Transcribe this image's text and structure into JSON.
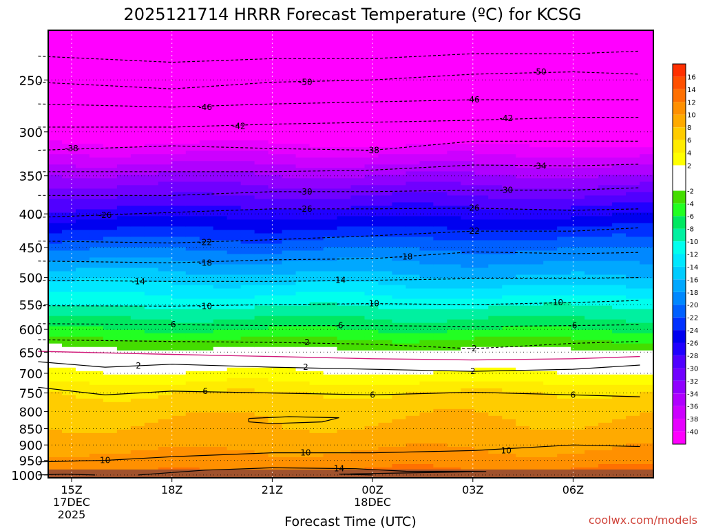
{
  "title": "2025121714 HRRR Forecast Temperature (ºC) for KCSG",
  "xlabel": "Forecast Time (UTC)",
  "credit": "coolwx.com/models",
  "colors": {
    "line": "#000000",
    "freezing_line": "#d11a7a",
    "ground": "#a0522d",
    "credit": "#d0443a"
  },
  "chart_data": {
    "type": "heatmap",
    "title": "2025121714 HRRR Forecast Temperature (ºC) for KCSG",
    "xlabel": "Forecast Time (UTC)",
    "ylabel": "",
    "x_hours": [
      14,
      15,
      16,
      17,
      18,
      19,
      20,
      21,
      22,
      23,
      24,
      25,
      26,
      27,
      28,
      29,
      30,
      31,
      32
    ],
    "y_pressure": [
      1000,
      950,
      900,
      850,
      800,
      750,
      700,
      650,
      600,
      550,
      500,
      450,
      400,
      350,
      300,
      250
    ],
    "ylim": [
      1010,
      210
    ],
    "xticks": [
      {
        "hour": 15,
        "label": "15Z",
        "sub1": "17DEC",
        "sub2": "2025"
      },
      {
        "hour": 18,
        "label": "18Z",
        "sub1": "",
        "sub2": ""
      },
      {
        "hour": 21,
        "label": "21Z",
        "sub1": "",
        "sub2": ""
      },
      {
        "hour": 24,
        "label": "00Z",
        "sub1": "18DEC",
        "sub2": ""
      },
      {
        "hour": 27,
        "label": "03Z",
        "sub1": "",
        "sub2": ""
      },
      {
        "hour": 30,
        "label": "06Z",
        "sub1": "",
        "sub2": ""
      }
    ],
    "yticks": [
      1000,
      950,
      900,
      850,
      800,
      750,
      700,
      650,
      600,
      550,
      500,
      450,
      400,
      350,
      300,
      250
    ],
    "grid": true,
    "ground_pressure": 1000,
    "colorbar": {
      "placement": "right",
      "ticks": [
        16,
        14,
        12,
        10,
        8,
        6,
        4,
        2,
        -2,
        -4,
        -6,
        -8,
        -10,
        -12,
        -14,
        -16,
        -18,
        -20,
        -22,
        -24,
        -26,
        -28,
        -30,
        -32,
        -34,
        -36,
        -38,
        -40
      ],
      "bins": [
        {
          "min": -42,
          "max": -40,
          "color": "#ff00ff"
        },
        {
          "min": -40,
          "max": -38,
          "color": "#e600ff"
        },
        {
          "min": -38,
          "max": -36,
          "color": "#cc00ff"
        },
        {
          "min": -36,
          "max": -34,
          "color": "#b000ff"
        },
        {
          "min": -34,
          "max": -32,
          "color": "#9000ff"
        },
        {
          "min": -32,
          "max": -30,
          "color": "#7000ff"
        },
        {
          "min": -30,
          "max": -28,
          "color": "#5000ff"
        },
        {
          "min": -28,
          "max": -26,
          "color": "#2000ff"
        },
        {
          "min": -26,
          "max": -24,
          "color": "#0000f0"
        },
        {
          "min": -24,
          "max": -22,
          "color": "#0030ff"
        },
        {
          "min": -22,
          "max": -20,
          "color": "#0060ff"
        },
        {
          "min": -20,
          "max": -18,
          "color": "#0088ff"
        },
        {
          "min": -18,
          "max": -16,
          "color": "#00a8ff"
        },
        {
          "min": -16,
          "max": -14,
          "color": "#00ccff"
        },
        {
          "min": -14,
          "max": -12,
          "color": "#00e8ff"
        },
        {
          "min": -12,
          "max": -10,
          "color": "#00ffee"
        },
        {
          "min": -10,
          "max": -8,
          "color": "#00f0a0"
        },
        {
          "min": -8,
          "max": -6,
          "color": "#00e860"
        },
        {
          "min": -6,
          "max": -4,
          "color": "#22ff22"
        },
        {
          "min": -4,
          "max": -2,
          "color": "#44dd00"
        },
        {
          "min": -2,
          "max": 2,
          "color": "#ffffff"
        },
        {
          "min": 2,
          "max": 4,
          "color": "#ffff00"
        },
        {
          "min": 4,
          "max": 6,
          "color": "#ffec00"
        },
        {
          "min": 6,
          "max": 8,
          "color": "#ffcc00"
        },
        {
          "min": 8,
          "max": 10,
          "color": "#ffaa00"
        },
        {
          "min": 10,
          "max": 12,
          "color": "#ff9000"
        },
        {
          "min": 12,
          "max": 14,
          "color": "#ff7000"
        },
        {
          "min": 14,
          "max": 16,
          "color": "#ff5000"
        },
        {
          "min": 16,
          "max": 18,
          "color": "#ff3000"
        }
      ]
    },
    "profile": {
      "pressures": [
        1000,
        950,
        900,
        850,
        800,
        750,
        700,
        650,
        600,
        550,
        500,
        450,
        400,
        350,
        300,
        250,
        220
      ],
      "temps_early": [
        11.5,
        11,
        9.2,
        8.2,
        7.4,
        6,
        2.4,
        -1.1,
        -6,
        -10.5,
        -14.6,
        -20.5,
        -27,
        -33.6,
        -42,
        -49,
        -55
      ],
      "temps_late": [
        13.2,
        10.9,
        9.6,
        8.6,
        7.6,
        6.1,
        2.0,
        -1.3,
        -6.2,
        -10.4,
        -16.1,
        -20.3,
        -26.5,
        -34,
        -43,
        -49.5,
        -55
      ]
    },
    "contours": [
      {
        "value": 10,
        "style": "solid",
        "points": [
          [
            14,
            955
          ],
          [
            16,
            950
          ],
          [
            18,
            938
          ],
          [
            21,
            925
          ],
          [
            24,
            925
          ],
          [
            27,
            918
          ],
          [
            30,
            900
          ],
          [
            32,
            905
          ]
        ],
        "labels": [
          [
            16,
            950
          ],
          [
            22,
            925
          ],
          [
            28,
            918
          ]
        ]
      },
      {
        "value": 14,
        "style": "solid",
        "points": [
          [
            17,
            1000
          ],
          [
            19,
            983
          ],
          [
            21,
            975
          ],
          [
            23.5,
            978
          ],
          [
            25,
            987
          ],
          [
            27.4,
            988
          ],
          [
            25.5,
            992
          ],
          [
            23,
            997
          ],
          [
            24,
            1000
          ]
        ],
        "labels": [
          [
            23,
            978
          ]
        ]
      },
      {
        "value": 6,
        "style": "solid",
        "points": [
          [
            14,
            735
          ],
          [
            16,
            755
          ],
          [
            18,
            745
          ],
          [
            21,
            750
          ],
          [
            24,
            755
          ],
          [
            27,
            748
          ],
          [
            30,
            755
          ],
          [
            32,
            760
          ]
        ],
        "labels": [
          [
            19,
            745
          ],
          [
            24,
            755
          ],
          [
            30,
            755
          ]
        ]
      },
      {
        "value": 2,
        "style": "solid",
        "points": [
          [
            14,
            672
          ],
          [
            16,
            685
          ],
          [
            18,
            678
          ],
          [
            21,
            685
          ],
          [
            24,
            690
          ],
          [
            27,
            695
          ],
          [
            30,
            690
          ],
          [
            32,
            680
          ]
        ],
        "labels": [
          [
            17,
            682
          ],
          [
            22,
            685
          ],
          [
            27,
            695
          ]
        ]
      },
      {
        "value": 0,
        "style": "freezing",
        "points": [
          [
            14,
            648
          ],
          [
            18,
            655
          ],
          [
            21,
            660
          ],
          [
            24,
            665
          ],
          [
            27,
            668
          ],
          [
            30,
            665
          ],
          [
            32,
            660
          ]
        ],
        "labels": []
      },
      {
        "value": -2,
        "style": "dashed",
        "points": [
          [
            14,
            622
          ],
          [
            18,
            626
          ],
          [
            21,
            628
          ],
          [
            24,
            632
          ],
          [
            27,
            642
          ],
          [
            30,
            630
          ],
          [
            32,
            626
          ]
        ],
        "labels": [
          [
            22,
            628
          ],
          [
            27,
            642
          ]
        ]
      },
      {
        "value": -6,
        "style": "dashed",
        "points": [
          [
            14,
            588
          ],
          [
            18,
            590
          ],
          [
            21,
            592
          ],
          [
            24,
            592
          ],
          [
            27,
            594
          ],
          [
            30,
            592
          ],
          [
            32,
            590
          ]
        ],
        "labels": [
          [
            18,
            590
          ],
          [
            23,
            592
          ],
          [
            30,
            592
          ]
        ]
      },
      {
        "value": -10,
        "style": "dashed",
        "points": [
          [
            14,
            552
          ],
          [
            18,
            553
          ],
          [
            21,
            550
          ],
          [
            24,
            548
          ],
          [
            27,
            550
          ],
          [
            30,
            546
          ],
          [
            32,
            542
          ]
        ],
        "labels": [
          [
            19,
            553
          ],
          [
            24,
            548
          ],
          [
            29.5,
            546
          ]
        ]
      },
      {
        "value": -14,
        "style": "dashed",
        "points": [
          [
            14,
            505
          ],
          [
            18,
            507
          ],
          [
            21,
            507
          ],
          [
            24,
            505
          ],
          [
            27,
            502
          ],
          [
            30,
            502
          ],
          [
            32,
            500
          ]
        ],
        "labels": [
          [
            17,
            507
          ],
          [
            23,
            505
          ]
        ]
      },
      {
        "value": -18,
        "style": "dashed",
        "points": [
          [
            14,
            472
          ],
          [
            18,
            475
          ],
          [
            21,
            470
          ],
          [
            24,
            468
          ],
          [
            27,
            457
          ],
          [
            30,
            460
          ],
          [
            32,
            458
          ]
        ],
        "labels": [
          [
            19,
            475
          ],
          [
            25,
            465
          ]
        ]
      },
      {
        "value": -22,
        "style": "dashed",
        "points": [
          [
            14,
            440
          ],
          [
            18,
            443
          ],
          [
            21,
            438
          ],
          [
            24,
            432
          ],
          [
            27,
            425
          ],
          [
            30,
            425
          ],
          [
            32,
            420
          ]
        ],
        "labels": [
          [
            19,
            442
          ],
          [
            27,
            425
          ]
        ]
      },
      {
        "value": -26,
        "style": "dashed",
        "points": [
          [
            14,
            405
          ],
          [
            18,
            398
          ],
          [
            21,
            393
          ],
          [
            24,
            393
          ],
          [
            27,
            392
          ],
          [
            30,
            395
          ],
          [
            32,
            393
          ]
        ],
        "labels": [
          [
            16,
            402
          ],
          [
            22,
            393
          ],
          [
            27,
            392
          ]
        ]
      },
      {
        "value": -30,
        "style": "dashed",
        "points": [
          [
            14,
            375
          ],
          [
            18,
            375
          ],
          [
            21,
            370
          ],
          [
            24,
            370
          ],
          [
            27,
            368
          ],
          [
            30,
            368
          ],
          [
            32,
            365
          ]
        ],
        "labels": [
          [
            22,
            370
          ],
          [
            28,
            368
          ]
        ]
      },
      {
        "value": -34,
        "style": "dashed",
        "points": [
          [
            14,
            345
          ],
          [
            18,
            345
          ],
          [
            21,
            345
          ],
          [
            24,
            343
          ],
          [
            27,
            337
          ],
          [
            30,
            338
          ],
          [
            32,
            336
          ]
        ],
        "labels": [
          [
            29,
            338
          ]
        ]
      },
      {
        "value": -38,
        "style": "dashed",
        "points": [
          [
            14,
            320
          ],
          [
            18,
            315
          ],
          [
            21,
            318
          ],
          [
            24,
            320
          ],
          [
            27,
            310
          ],
          [
            30,
            310
          ],
          [
            32,
            310
          ]
        ],
        "labels": [
          [
            15,
            318
          ],
          [
            24,
            320
          ]
        ]
      },
      {
        "value": -42,
        "style": "dashed",
        "points": [
          [
            14,
            295
          ],
          [
            18,
            295
          ],
          [
            21,
            292
          ],
          [
            24,
            290
          ],
          [
            27,
            288
          ],
          [
            30,
            285
          ],
          [
            32,
            285
          ]
        ],
        "labels": [
          [
            20,
            294
          ],
          [
            28,
            286
          ]
        ]
      },
      {
        "value": -46,
        "style": "dashed",
        "points": [
          [
            14,
            272
          ],
          [
            18,
            275
          ],
          [
            21,
            272
          ],
          [
            24,
            270
          ],
          [
            27,
            268
          ],
          [
            30,
            268
          ],
          [
            32,
            268
          ]
        ],
        "labels": [
          [
            19,
            275
          ],
          [
            27,
            268
          ]
        ]
      },
      {
        "value": -50,
        "style": "dashed",
        "points": [
          [
            14,
            252
          ],
          [
            18,
            258
          ],
          [
            21,
            252
          ],
          [
            24,
            250
          ],
          [
            27,
            245
          ],
          [
            30,
            243
          ],
          [
            32,
            245
          ]
        ],
        "labels": [
          [
            22,
            252
          ],
          [
            29,
            243
          ]
        ]
      },
      {
        "value": -54,
        "style": "dashed",
        "points": [
          [
            14,
            230
          ],
          [
            18,
            235
          ],
          [
            21,
            232
          ],
          [
            24,
            232
          ],
          [
            27,
            228
          ],
          [
            30,
            228
          ],
          [
            32,
            226
          ]
        ],
        "labels": []
      },
      {
        "value": 8,
        "style": "solid",
        "points": [
          [
            20.3,
            820
          ],
          [
            21.5,
            815
          ],
          [
            23,
            818
          ],
          [
            22.5,
            830
          ],
          [
            21,
            835
          ],
          [
            20.3,
            830
          ],
          [
            20.3,
            820
          ]
        ],
        "labels": []
      },
      {
        "value": 12,
        "style": "solid",
        "points": [
          [
            14,
            1000
          ],
          [
            14.8,
            997
          ],
          [
            15.7,
            1000
          ]
        ],
        "labels": []
      }
    ]
  }
}
